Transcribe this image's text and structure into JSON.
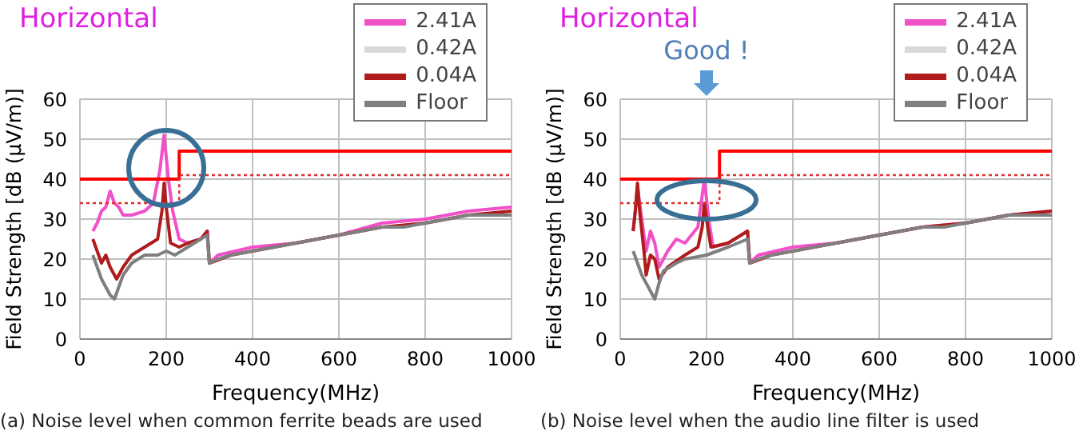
{
  "chart_data": [
    {
      "type": "line",
      "title": "Horizontal",
      "xlabel": "Frequency(MHz)",
      "ylabel": "Field Strength [dB (μV/m)]",
      "xlim": [
        0,
        1000
      ],
      "xticks": [
        0,
        200,
        400,
        600,
        800,
        1000
      ],
      "ylim": [
        0,
        60
      ],
      "yticks": [
        0,
        10,
        20,
        30,
        40,
        50,
        60
      ],
      "grid": true,
      "legend": "top right",
      "marker": "none",
      "annotations": [
        "(a) Noise level when common ferrite beads are used"
      ],
      "series": [
        {
          "name": "2.41A",
          "color": "#f050c8",
          "x": [
            30,
            40,
            50,
            60,
            70,
            80,
            90,
            100,
            120,
            150,
            170,
            185,
            195,
            205,
            215,
            230,
            250,
            280,
            295,
            300,
            320,
            400,
            500,
            600,
            700,
            800,
            900,
            1000
          ],
          "values": [
            27,
            29,
            32,
            33,
            37,
            34,
            33,
            31,
            31,
            32,
            34,
            42,
            51,
            40,
            32,
            25,
            24,
            25,
            27,
            19,
            21,
            23,
            24,
            26,
            29,
            30,
            32,
            33
          ]
        },
        {
          "name": "0.42A",
          "color": "#d9d9d9"
        },
        {
          "name": "0.04A",
          "color": "#b01c1c",
          "x": [
            30,
            40,
            50,
            60,
            70,
            85,
            100,
            120,
            150,
            180,
            190,
            195,
            200,
            210,
            230,
            250,
            280,
            295,
            300,
            350,
            400,
            500,
            600,
            700,
            800,
            900,
            1000
          ],
          "values": [
            25,
            22,
            19,
            21,
            18,
            15,
            18,
            21,
            23,
            25,
            32,
            39,
            33,
            24,
            23,
            24,
            25,
            27,
            19,
            21,
            22,
            24,
            26,
            28,
            29,
            31,
            32
          ]
        },
        {
          "name": "Floor",
          "color": "#7f7f7f",
          "x": [
            30,
            50,
            70,
            80,
            90,
            100,
            120,
            150,
            180,
            200,
            220,
            250,
            280,
            295,
            300,
            320,
            350,
            400,
            450,
            500,
            550,
            600,
            650,
            700,
            750,
            800,
            850,
            900,
            950,
            1000
          ],
          "values": [
            21,
            15,
            11,
            10,
            13,
            16,
            19,
            21,
            21,
            22,
            21,
            23,
            25,
            26,
            19,
            20,
            21,
            22,
            23,
            24,
            25,
            26,
            27,
            28,
            28,
            29,
            30,
            31,
            31,
            31
          ]
        },
        {
          "type": "step",
          "color": "#ff0000",
          "line_style": "solid",
          "x": [
            0,
            230,
            1000
          ],
          "values": [
            40,
            47,
            47
          ]
        },
        {
          "type": "step",
          "color": "#e03030",
          "line_style": "dotted",
          "x": [
            0,
            230,
            1000
          ],
          "values": [
            34,
            41,
            41
          ]
        }
      ]
    },
    {
      "type": "line",
      "title": "Horizontal",
      "xlabel": "Frequency(MHz)",
      "ylabel": "Field Strength [dB (μV/m)]",
      "xlim": [
        0,
        1000
      ],
      "xticks": [
        0,
        200,
        400,
        600,
        800,
        1000
      ],
      "ylim": [
        0,
        60
      ],
      "yticks": [
        0,
        10,
        20,
        30,
        40,
        50,
        60
      ],
      "grid": true,
      "legend": "top right",
      "marker": "none",
      "annotations": [
        "Good !",
        "(b) Noise level when the audio line filter is used"
      ],
      "series": [
        {
          "name": "2.41A",
          "color": "#f050c8",
          "x": [
            30,
            40,
            50,
            60,
            70,
            80,
            90,
            110,
            130,
            150,
            180,
            195,
            205,
            215,
            250,
            295,
            300,
            320,
            400,
            500,
            600,
            700,
            800,
            900,
            1000
          ],
          "values": [
            27,
            38,
            30,
            22,
            27,
            24,
            18,
            22,
            25,
            24,
            28,
            40,
            30,
            23,
            24,
            27,
            19,
            21,
            23,
            24,
            26,
            28,
            29,
            31,
            32
          ]
        },
        {
          "name": "0.42A",
          "color": "#d9d9d9"
        },
        {
          "name": "0.04A",
          "color": "#b01c1c",
          "x": [
            30,
            35,
            40,
            45,
            55,
            60,
            70,
            80,
            90,
            110,
            150,
            180,
            190,
            195,
            200,
            210,
            250,
            295,
            300,
            350,
            400,
            500,
            600,
            700,
            800,
            900,
            1000
          ],
          "values": [
            27,
            32,
            39,
            32,
            22,
            16,
            21,
            20,
            15,
            18,
            21,
            23,
            28,
            34,
            30,
            23,
            24,
            27,
            19,
            21,
            22,
            24,
            26,
            28,
            29,
            31,
            32
          ]
        },
        {
          "name": "Floor",
          "color": "#7f7f7f",
          "x": [
            30,
            50,
            70,
            80,
            90,
            100,
            130,
            150,
            200,
            250,
            295,
            300,
            320,
            350,
            400,
            450,
            500,
            550,
            600,
            650,
            700,
            750,
            800,
            850,
            900,
            950,
            1000
          ],
          "values": [
            22,
            16,
            12,
            10,
            14,
            17,
            19,
            20,
            21,
            23,
            25,
            19,
            20,
            21,
            22,
            23,
            24,
            25,
            26,
            27,
            28,
            28,
            29,
            30,
            31,
            31,
            31
          ]
        },
        {
          "type": "step",
          "color": "#ff0000",
          "line_style": "solid",
          "x": [
            0,
            230,
            1000
          ],
          "values": [
            40,
            47,
            47
          ]
        },
        {
          "type": "step",
          "color": "#e03030",
          "line_style": "dotted",
          "x": [
            0,
            230,
            1000
          ],
          "values": [
            34,
            41,
            41
          ]
        }
      ]
    }
  ]
}
